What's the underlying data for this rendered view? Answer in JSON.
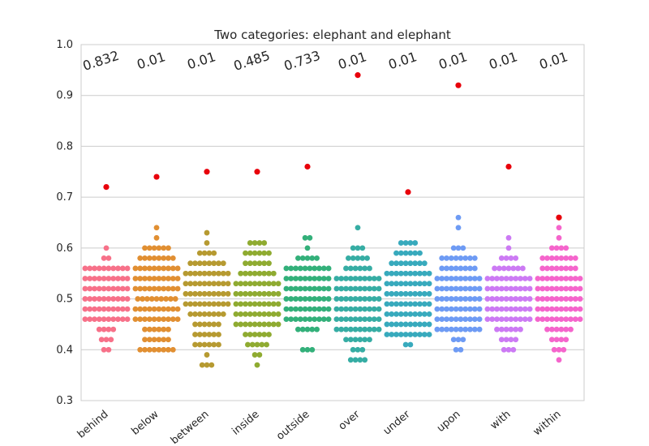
{
  "chart_data": {
    "type": "scatter",
    "subtype": "swarm",
    "title": "Two categories: elephant and elephant",
    "xlabel": "",
    "ylabel": "",
    "ylim": [
      0.3,
      1.0
    ],
    "yticks": [
      "0.3",
      "0.4",
      "0.5",
      "0.6",
      "0.7",
      "0.8",
      "0.9",
      "1.0"
    ],
    "grid": true,
    "highlight_color": "#e8000b",
    "categories": [
      {
        "name": "behind",
        "color": "#f77189",
        "p_value": "0.832",
        "highlight": 0.72,
        "counts": [
          [
            0.4,
            2
          ],
          [
            0.42,
            3
          ],
          [
            0.44,
            4
          ],
          [
            0.46,
            10
          ],
          [
            0.48,
            10
          ],
          [
            0.5,
            10
          ],
          [
            0.52,
            10
          ],
          [
            0.54,
            10
          ],
          [
            0.56,
            10
          ],
          [
            0.58,
            2
          ],
          [
            0.6,
            1
          ]
        ]
      },
      {
        "name": "below",
        "color": "#e18f32",
        "p_value": "0.01",
        "highlight": 0.74,
        "counts": [
          [
            0.4,
            8
          ],
          [
            0.42,
            6
          ],
          [
            0.44,
            6
          ],
          [
            0.46,
            10
          ],
          [
            0.48,
            10
          ],
          [
            0.5,
            9
          ],
          [
            0.52,
            10
          ],
          [
            0.54,
            10
          ],
          [
            0.56,
            10
          ],
          [
            0.58,
            8
          ],
          [
            0.6,
            6
          ],
          [
            0.62,
            1
          ],
          [
            0.64,
            1
          ]
        ]
      },
      {
        "name": "between",
        "color": "#b69a31",
        "p_value": "0.01",
        "highlight": 0.75,
        "counts": [
          [
            0.37,
            3
          ],
          [
            0.39,
            1
          ],
          [
            0.41,
            6
          ],
          [
            0.43,
            6
          ],
          [
            0.45,
            6
          ],
          [
            0.47,
            8
          ],
          [
            0.49,
            10
          ],
          [
            0.51,
            10
          ],
          [
            0.53,
            10
          ],
          [
            0.55,
            10
          ],
          [
            0.57,
            8
          ],
          [
            0.59,
            4
          ],
          [
            0.61,
            1
          ],
          [
            0.63,
            1
          ]
        ]
      },
      {
        "name": "inside",
        "color": "#8fab31",
        "p_value": "0.485",
        "highlight": 0.75,
        "counts": [
          [
            0.37,
            1
          ],
          [
            0.39,
            2
          ],
          [
            0.41,
            5
          ],
          [
            0.43,
            6
          ],
          [
            0.45,
            10
          ],
          [
            0.47,
            10
          ],
          [
            0.49,
            10
          ],
          [
            0.51,
            10
          ],
          [
            0.53,
            10
          ],
          [
            0.55,
            8
          ],
          [
            0.57,
            6
          ],
          [
            0.59,
            6
          ],
          [
            0.61,
            4
          ]
        ]
      },
      {
        "name": "outside",
        "color": "#33b07a",
        "p_value": "0.733",
        "highlight": 0.76,
        "counts": [
          [
            0.4,
            3
          ],
          [
            0.44,
            5
          ],
          [
            0.46,
            10
          ],
          [
            0.48,
            10
          ],
          [
            0.5,
            10
          ],
          [
            0.52,
            10
          ],
          [
            0.54,
            10
          ],
          [
            0.56,
            10
          ],
          [
            0.58,
            5
          ],
          [
            0.6,
            1
          ],
          [
            0.62,
            2
          ]
        ]
      },
      {
        "name": "over",
        "color": "#36ada4",
        "p_value": "0.01",
        "highlight": 0.94,
        "counts": [
          [
            0.38,
            4
          ],
          [
            0.4,
            3
          ],
          [
            0.42,
            6
          ],
          [
            0.44,
            10
          ],
          [
            0.46,
            10
          ],
          [
            0.48,
            10
          ],
          [
            0.5,
            10
          ],
          [
            0.52,
            10
          ],
          [
            0.54,
            10
          ],
          [
            0.56,
            6
          ],
          [
            0.58,
            5
          ],
          [
            0.6,
            3
          ],
          [
            0.64,
            1
          ]
        ]
      },
      {
        "name": "under",
        "color": "#38aabd",
        "p_value": "0.01",
        "highlight": 0.71,
        "counts": [
          [
            0.41,
            2
          ],
          [
            0.43,
            10
          ],
          [
            0.45,
            10
          ],
          [
            0.47,
            10
          ],
          [
            0.49,
            10
          ],
          [
            0.51,
            10
          ],
          [
            0.53,
            10
          ],
          [
            0.55,
            10
          ],
          [
            0.57,
            8
          ],
          [
            0.59,
            6
          ],
          [
            0.61,
            4
          ]
        ]
      },
      {
        "name": "upon",
        "color": "#6e9bf4",
        "p_value": "0.01",
        "highlight": 0.92,
        "counts": [
          [
            0.4,
            2
          ],
          [
            0.42,
            3
          ],
          [
            0.44,
            10
          ],
          [
            0.46,
            10
          ],
          [
            0.48,
            10
          ],
          [
            0.5,
            10
          ],
          [
            0.52,
            10
          ],
          [
            0.54,
            10
          ],
          [
            0.56,
            8
          ],
          [
            0.58,
            8
          ],
          [
            0.6,
            3
          ],
          [
            0.64,
            1
          ],
          [
            0.66,
            1
          ]
        ]
      },
      {
        "name": "with",
        "color": "#cc7af4",
        "p_value": "0.01",
        "highlight": 0.76,
        "counts": [
          [
            0.4,
            3
          ],
          [
            0.42,
            4
          ],
          [
            0.44,
            6
          ],
          [
            0.46,
            10
          ],
          [
            0.48,
            10
          ],
          [
            0.5,
            10
          ],
          [
            0.52,
            10
          ],
          [
            0.54,
            10
          ],
          [
            0.56,
            7
          ],
          [
            0.58,
            4
          ],
          [
            0.6,
            1
          ],
          [
            0.62,
            1
          ]
        ]
      },
      {
        "name": "within",
        "color": "#f565cc",
        "p_value": "0.01",
        "highlight": 0.66,
        "counts": [
          [
            0.38,
            1
          ],
          [
            0.4,
            3
          ],
          [
            0.42,
            4
          ],
          [
            0.44,
            6
          ],
          [
            0.46,
            10
          ],
          [
            0.48,
            10
          ],
          [
            0.5,
            10
          ],
          [
            0.52,
            10
          ],
          [
            0.54,
            10
          ],
          [
            0.56,
            8
          ],
          [
            0.58,
            8
          ],
          [
            0.6,
            4
          ],
          [
            0.62,
            1
          ],
          [
            0.64,
            1
          ]
        ]
      }
    ]
  }
}
